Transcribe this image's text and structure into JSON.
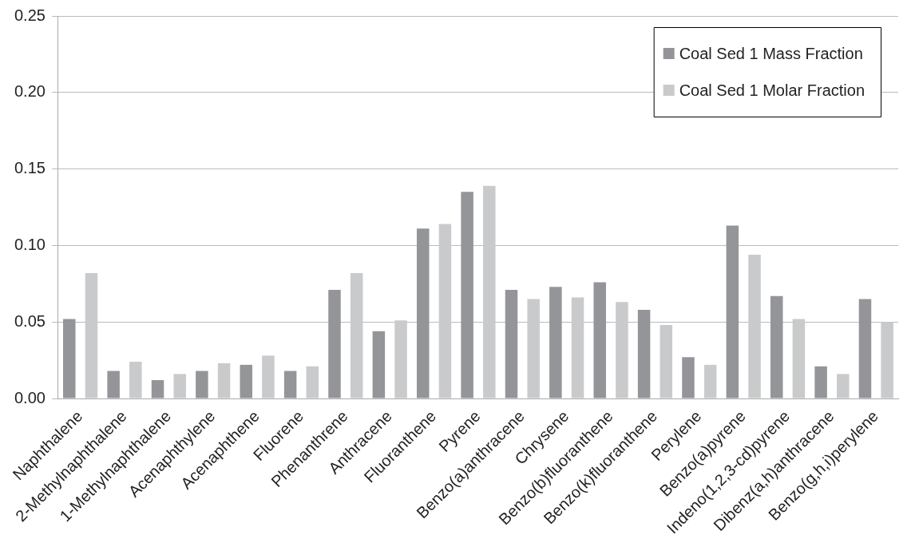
{
  "chart_data": {
    "type": "bar",
    "categories": [
      "Naphthalene",
      "2-Methylnaphthalene",
      "1-Methylnaphthalene",
      "Acenaphthylene",
      "Acenaphthene",
      "Fluorene",
      "Phenanthrene",
      "Anthracene",
      "Fluoranthene",
      "Pyrene",
      "Benzo(a)anthracene",
      "Chrysene",
      "Benzo(b)fluoranthene",
      "Benzo(k)fluoranthene",
      "Perylene",
      "Benzo(a)pyrene",
      "Indeno(1,2,3-cd)pyrene",
      "Dibenz(a,h)anthracene",
      "Benzo(g,h,i)perylene"
    ],
    "series": [
      {
        "name": "Coal Sed 1 Mass Fraction",
        "color": "#939598",
        "values": [
          0.052,
          0.018,
          0.012,
          0.018,
          0.022,
          0.018,
          0.071,
          0.044,
          0.111,
          0.135,
          0.071,
          0.073,
          0.076,
          0.058,
          0.027,
          0.113,
          0.067,
          0.021,
          0.065
        ]
      },
      {
        "name": "Coal Sed 1 Molar Fraction",
        "color": "#c9cacc",
        "values": [
          0.082,
          0.024,
          0.016,
          0.023,
          0.028,
          0.021,
          0.082,
          0.051,
          0.114,
          0.139,
          0.065,
          0.066,
          0.063,
          0.048,
          0.022,
          0.094,
          0.052,
          0.016,
          0.05
        ]
      }
    ],
    "ylim": [
      0,
      0.25
    ],
    "yticks": [
      {
        "value": 0,
        "label": "0.00"
      },
      {
        "value": 0.05,
        "label": "0.05"
      },
      {
        "value": 0.1,
        "label": "0.10"
      },
      {
        "value": 0.15,
        "label": "0.15"
      },
      {
        "value": 0.2,
        "label": "0.20"
      },
      {
        "value": 0.25,
        "label": "0.25"
      }
    ],
    "grid": "y",
    "legend": "top right"
  }
}
